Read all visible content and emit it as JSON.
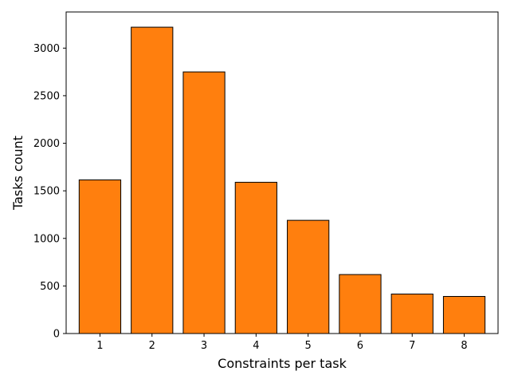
{
  "chart_data": {
    "type": "bar",
    "title": "",
    "xlabel": "Constraints per task",
    "ylabel": "Tasks count",
    "categories": [
      "1",
      "2",
      "3",
      "4",
      "5",
      "6",
      "7",
      "8"
    ],
    "values": [
      1615,
      3220,
      2750,
      1590,
      1190,
      620,
      415,
      390
    ],
    "ylim": [
      0,
      3380
    ],
    "yticks": [
      0,
      500,
      1000,
      1500,
      2000,
      2500,
      3000
    ],
    "ytick_labels": [
      "0",
      "500",
      "1000",
      "1500",
      "2000",
      "2500",
      "3000"
    ],
    "grid": false,
    "legend": "none",
    "bar_color": "#ff7f0e",
    "edge_color": "#000000"
  }
}
